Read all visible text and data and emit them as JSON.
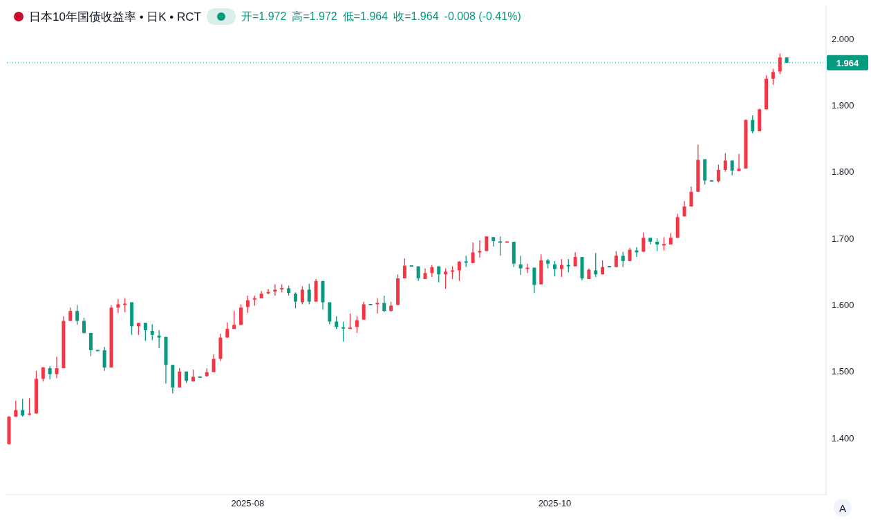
{
  "chart_data": {
    "type": "candlestick",
    "title": "日本10年国债收益率 • 日K • RCT",
    "annotations": [
      "开=1.972",
      "高=1.972",
      "低=1.964",
      "收=1.964",
      "-0.008 (-0.41%)",
      "A"
    ],
    "categories": [
      null,
      null,
      null,
      null,
      null,
      null,
      null,
      null,
      null,
      null,
      null,
      null,
      null,
      null,
      null,
      null,
      null,
      null,
      null,
      null,
      null,
      null,
      null,
      null,
      null,
      null,
      null,
      null,
      null,
      null,
      null,
      null,
      null,
      null,
      null,
      "2025-08",
      null,
      null,
      null,
      null,
      null,
      null,
      null,
      null,
      null,
      null,
      null,
      null,
      null,
      null,
      null,
      null,
      null,
      null,
      null,
      null,
      null,
      null,
      null,
      null,
      null,
      null,
      null,
      null,
      null,
      null,
      null,
      null,
      null,
      null,
      null,
      null,
      null,
      null,
      null,
      null,
      null,
      null,
      null,
      null,
      "2025-10",
      null,
      null,
      null,
      null,
      null,
      null,
      null,
      null,
      null,
      null,
      null,
      null,
      null,
      null,
      null,
      null,
      null,
      null,
      null,
      null,
      null,
      null,
      null,
      null,
      null,
      null,
      null,
      null,
      null,
      null,
      null,
      null,
      null,
      null
    ],
    "ohlc": [
      [
        1.391,
        1.433,
        1.39,
        1.432
      ],
      [
        1.432,
        1.456,
        1.432,
        1.442
      ],
      [
        1.442,
        1.459,
        1.432,
        1.434
      ],
      [
        1.435,
        1.46,
        1.434,
        1.437
      ],
      [
        1.437,
        1.501,
        1.437,
        1.489
      ],
      [
        1.489,
        1.507,
        1.485,
        1.506
      ],
      [
        1.505,
        1.508,
        1.488,
        1.496
      ],
      [
        1.496,
        1.522,
        1.49,
        1.505
      ],
      [
        1.505,
        1.583,
        1.505,
        1.576
      ],
      [
        1.576,
        1.596,
        1.576,
        1.591
      ],
      [
        1.591,
        1.6,
        1.57,
        1.576
      ],
      [
        1.576,
        1.581,
        1.557,
        1.558
      ],
      [
        1.558,
        1.558,
        1.523,
        1.532
      ],
      [
        1.532,
        1.532,
        1.531,
        1.531
      ],
      [
        1.532,
        1.537,
        1.501,
        1.506
      ],
      [
        1.506,
        1.6,
        1.506,
        1.596
      ],
      [
        1.596,
        1.609,
        1.588,
        1.601
      ],
      [
        1.6,
        1.61,
        1.589,
        1.602
      ],
      [
        1.604,
        1.604,
        1.555,
        1.568
      ],
      [
        1.568,
        1.573,
        1.555,
        1.573
      ],
      [
        1.573,
        1.573,
        1.546,
        1.562
      ],
      [
        1.561,
        1.571,
        1.547,
        1.555
      ],
      [
        1.554,
        1.562,
        1.535,
        1.551
      ],
      [
        1.552,
        1.552,
        1.482,
        1.51
      ],
      [
        1.51,
        1.51,
        1.467,
        1.476
      ],
      [
        1.476,
        1.505,
        1.476,
        1.5
      ],
      [
        1.5,
        1.5,
        1.483,
        1.486
      ],
      [
        1.485,
        1.503,
        1.485,
        1.492
      ],
      [
        1.492,
        1.492,
        1.491,
        1.491
      ],
      [
        1.493,
        1.505,
        1.492,
        1.499
      ],
      [
        1.499,
        1.526,
        1.499,
        1.519
      ],
      [
        1.519,
        1.557,
        1.516,
        1.551
      ],
      [
        1.551,
        1.574,
        1.551,
        1.564
      ],
      [
        1.564,
        1.591,
        1.564,
        1.57
      ],
      [
        1.57,
        1.601,
        1.57,
        1.596
      ],
      [
        1.597,
        1.614,
        1.588,
        1.607
      ],
      [
        1.608,
        1.614,
        1.599,
        1.61
      ],
      [
        1.61,
        1.621,
        1.61,
        1.617
      ],
      [
        1.618,
        1.624,
        1.616,
        1.619
      ],
      [
        1.62,
        1.631,
        1.614,
        1.623
      ],
      [
        1.624,
        1.631,
        1.619,
        1.625
      ],
      [
        1.625,
        1.629,
        1.614,
        1.618
      ],
      [
        1.617,
        1.619,
        1.595,
        1.605
      ],
      [
        1.604,
        1.628,
        1.601,
        1.623
      ],
      [
        1.623,
        1.632,
        1.601,
        1.605
      ],
      [
        1.605,
        1.639,
        1.605,
        1.636
      ],
      [
        1.636,
        1.636,
        1.593,
        1.604
      ],
      [
        1.604,
        1.604,
        1.571,
        1.575
      ],
      [
        1.575,
        1.583,
        1.564,
        1.567
      ],
      [
        1.566,
        1.575,
        1.545,
        1.565
      ],
      [
        1.564,
        1.587,
        1.564,
        1.566
      ],
      [
        1.567,
        1.583,
        1.558,
        1.577
      ],
      [
        1.578,
        1.605,
        1.578,
        1.601
      ],
      [
        1.601,
        1.601,
        1.6,
        1.6
      ],
      [
        1.601,
        1.61,
        1.587,
        1.603
      ],
      [
        1.603,
        1.614,
        1.589,
        1.591
      ],
      [
        1.591,
        1.605,
        1.59,
        1.599
      ],
      [
        1.6,
        1.646,
        1.6,
        1.64
      ],
      [
        1.64,
        1.67,
        1.64,
        1.659
      ],
      [
        1.659,
        1.659,
        1.658,
        1.658
      ],
      [
        1.658,
        1.658,
        1.636,
        1.64
      ],
      [
        1.639,
        1.655,
        1.639,
        1.648
      ],
      [
        1.648,
        1.66,
        1.642,
        1.657
      ],
      [
        1.658,
        1.658,
        1.634,
        1.646
      ],
      [
        1.646,
        1.655,
        1.624,
        1.65
      ],
      [
        1.65,
        1.658,
        1.639,
        1.652
      ],
      [
        1.652,
        1.666,
        1.636,
        1.665
      ],
      [
        1.665,
        1.674,
        1.657,
        1.664
      ],
      [
        1.663,
        1.694,
        1.663,
        1.679
      ],
      [
        1.679,
        1.697,
        1.671,
        1.681
      ],
      [
        1.681,
        1.703,
        1.681,
        1.703
      ],
      [
        1.702,
        1.702,
        1.688,
        1.696
      ],
      [
        1.695,
        1.703,
        1.674,
        1.694
      ],
      [
        1.694,
        1.695,
        1.694,
        1.695
      ],
      [
        1.695,
        1.695,
        1.657,
        1.662
      ],
      [
        1.661,
        1.674,
        1.645,
        1.655
      ],
      [
        1.654,
        1.662,
        1.648,
        1.656
      ],
      [
        1.656,
        1.656,
        1.618,
        1.63
      ],
      [
        1.631,
        1.676,
        1.631,
        1.667
      ],
      [
        1.667,
        1.669,
        1.655,
        1.662
      ],
      [
        1.661,
        1.666,
        1.643,
        1.654
      ],
      [
        1.654,
        1.669,
        1.642,
        1.66
      ],
      [
        1.66,
        1.669,
        1.649,
        1.658
      ],
      [
        1.658,
        1.679,
        1.658,
        1.672
      ],
      [
        1.672,
        1.672,
        1.637,
        1.64
      ],
      [
        1.639,
        1.655,
        1.639,
        1.653
      ],
      [
        1.652,
        1.678,
        1.642,
        1.646
      ],
      [
        1.646,
        1.667,
        1.646,
        1.657
      ],
      [
        1.658,
        1.658,
        1.657,
        1.657
      ],
      [
        1.657,
        1.681,
        1.657,
        1.674
      ],
      [
        1.674,
        1.68,
        1.657,
        1.666
      ],
      [
        1.666,
        1.686,
        1.666,
        1.683
      ],
      [
        1.682,
        1.687,
        1.672,
        1.679
      ],
      [
        1.68,
        1.709,
        1.68,
        1.701
      ],
      [
        1.701,
        1.701,
        1.691,
        1.695
      ],
      [
        1.695,
        1.7,
        1.681,
        1.691
      ],
      [
        1.69,
        1.702,
        1.682,
        1.691
      ],
      [
        1.691,
        1.708,
        1.691,
        1.701
      ],
      [
        1.701,
        1.737,
        1.701,
        1.732
      ],
      [
        1.733,
        1.756,
        1.733,
        1.748
      ],
      [
        1.748,
        1.778,
        1.748,
        1.77
      ],
      [
        1.77,
        1.841,
        1.77,
        1.818
      ],
      [
        1.819,
        1.819,
        1.781,
        1.787
      ],
      [
        1.787,
        1.787,
        1.786,
        1.786
      ],
      [
        1.786,
        1.811,
        1.784,
        1.803
      ],
      [
        1.803,
        1.828,
        1.8,
        1.817
      ],
      [
        1.817,
        1.817,
        1.795,
        1.802
      ],
      [
        1.801,
        1.827,
        1.801,
        1.805
      ],
      [
        1.805,
        1.879,
        1.805,
        1.878
      ],
      [
        1.878,
        1.885,
        1.858,
        1.861
      ],
      [
        1.861,
        1.895,
        1.861,
        1.894
      ],
      [
        1.894,
        1.945,
        1.894,
        1.94
      ],
      [
        1.94,
        1.955,
        1.931,
        1.95
      ],
      [
        1.951,
        1.978,
        1.947,
        1.972
      ],
      [
        1.972,
        1.972,
        1.964,
        1.964
      ]
    ],
    "colors": [
      "#f23645",
      "#f23645",
      "#089981",
      "#f23645",
      "#f23645",
      "#f23645",
      "#089981",
      "#f23645",
      "#f23645",
      "#f23645",
      "#089981",
      "#089981",
      "#089981",
      "#089981",
      "#089981",
      "#f23645",
      "#f23645",
      "#f23645",
      "#089981",
      "#f23645",
      "#089981",
      "#089981",
      "#089981",
      "#089981",
      "#089981",
      "#f23645",
      "#089981",
      "#f23645",
      "#089981",
      "#f23645",
      "#f23645",
      "#f23645",
      "#f23645",
      "#f23645",
      "#f23645",
      "#f23645",
      "#f23645",
      "#f23645",
      "#f23645",
      "#f23645",
      "#f23645",
      "#089981",
      "#089981",
      "#f23645",
      "#089981",
      "#f23645",
      "#089981",
      "#089981",
      "#089981",
      "#089981",
      "#f23645",
      "#f23645",
      "#f23645",
      "#089981",
      "#f23645",
      "#089981",
      "#f23645",
      "#f23645",
      "#f23645",
      "#089981",
      "#089981",
      "#f23645",
      "#f23645",
      "#089981",
      "#f23645",
      "#f23645",
      "#f23645",
      "#089981",
      "#f23645",
      "#f23645",
      "#f23645",
      "#089981",
      "#089981",
      "#f23645",
      "#089981",
      "#089981",
      "#f23645",
      "#089981",
      "#f23645",
      "#089981",
      "#089981",
      "#f23645",
      "#089981",
      "#f23645",
      "#089981",
      "#f23645",
      "#089981",
      "#f23645",
      "#089981",
      "#f23645",
      "#089981",
      "#f23645",
      "#089981",
      "#f23645",
      "#089981",
      "#089981",
      "#f23645",
      "#f23645",
      "#f23645",
      "#f23645",
      "#f23645",
      "#f23645",
      "#089981",
      "#089981",
      "#f23645",
      "#f23645",
      "#089981",
      "#f23645",
      "#f23645",
      "#089981",
      "#f23645",
      "#f23645",
      "#f23645",
      "#f23645",
      "#089981"
    ],
    "ylim": [
      1.315,
      2.05
    ],
    "yticks": [
      {
        "value": 1.4,
        "label": "1.400"
      },
      {
        "value": 1.5,
        "label": "1.500"
      },
      {
        "value": 1.6,
        "label": "1.600"
      },
      {
        "value": 1.7,
        "label": "1.700"
      },
      {
        "value": 1.8,
        "label": "1.800"
      },
      {
        "value": 1.9,
        "label": "1.900"
      },
      {
        "value": 2.0,
        "label": "2.000"
      }
    ],
    "ref_lines": [
      {
        "axis": "y",
        "value": 1.964,
        "label": "1.964",
        "color": "#089981",
        "line_style": "dotted"
      }
    ]
  }
}
